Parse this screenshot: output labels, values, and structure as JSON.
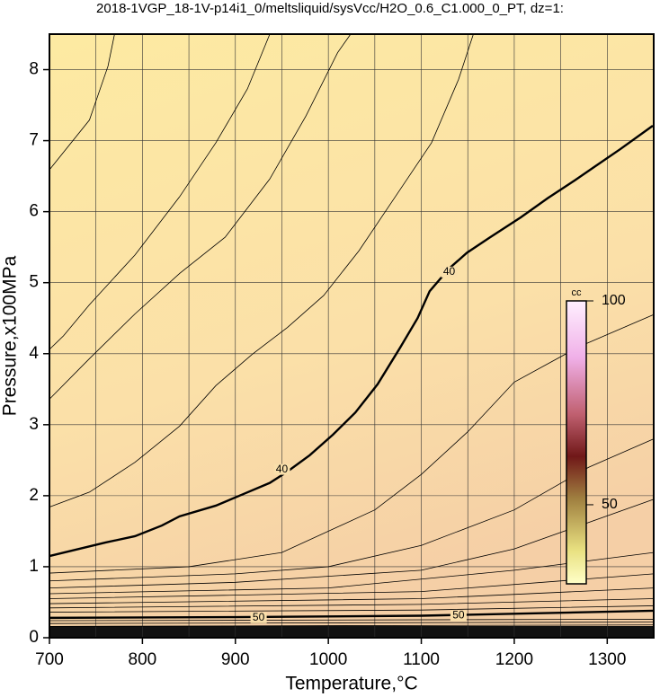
{
  "chart_data": {
    "type": "contour",
    "title": "2018-1VGP_18-1V-p14i1_0/meltsliquid/sysVcc/H2O_0.6_C1.000_0_PT, dz=1:",
    "x_label": "Temperature,°C",
    "y_label": "Pressure,x100MPa",
    "xlim": [
      700,
      1350
    ],
    "ylim": [
      0,
      8.5
    ],
    "xticks": [
      700,
      800,
      900,
      1000,
      1100,
      1200,
      1300
    ],
    "xminor_ticks": [
      750,
      850,
      950,
      1050,
      1150,
      1250,
      1350
    ],
    "yticks": [
      0,
      1,
      2,
      3,
      4,
      5,
      6,
      7,
      8
    ],
    "grid": true,
    "bold_contours": [
      {
        "x": [
          700,
          760,
          792,
          821,
          840,
          879,
          908,
          937,
          956,
          980,
          1005,
          1029,
          1053,
          1077,
          1096,
          1109,
          1130,
          1149,
          1173,
          1207,
          1236,
          1265,
          1285,
          1314,
          1349
        ],
        "y": [
          1.15,
          1.34,
          1.43,
          1.58,
          1.71,
          1.86,
          2.02,
          2.18,
          2.34,
          2.57,
          2.86,
          3.17,
          3.57,
          4.08,
          4.5,
          4.88,
          5.2,
          5.42,
          5.63,
          5.92,
          6.19,
          6.44,
          6.62,
          6.88,
          7.21
        ]
      },
      {
        "x": [
          700,
          900,
          1100,
          1350
        ],
        "y": [
          0.28,
          0.29,
          0.31,
          0.38
        ]
      }
    ],
    "contours": [
      {
        "x": [
          700,
          743,
          763,
          770
        ],
        "y": [
          6.59,
          7.29,
          8.05,
          8.5
        ]
      },
      {
        "x": [
          700,
          715,
          743,
          792,
          840,
          879,
          913,
          937
        ],
        "y": [
          4.06,
          4.25,
          4.69,
          5.39,
          6.21,
          6.97,
          7.73,
          8.5
        ]
      },
      {
        "x": [
          700,
          743,
          792,
          840,
          889,
          937,
          976,
          1010,
          1024
        ],
        "y": [
          3.36,
          3.93,
          4.56,
          5.13,
          5.64,
          6.46,
          7.35,
          8.24,
          8.5
        ]
      },
      {
        "x": [
          700,
          743,
          792,
          840,
          879,
          918,
          956,
          995,
          1033,
          1072,
          1111,
          1140,
          1156
        ],
        "y": [
          1.84,
          2.05,
          2.47,
          2.98,
          3.55,
          3.99,
          4.37,
          4.82,
          5.45,
          6.21,
          6.97,
          7.86,
          8.5
        ]
      },
      {
        "x": [
          700,
          850,
          950,
          1050,
          1100,
          1150,
          1200,
          1270,
          1350
        ],
        "y": [
          0.91,
          1.0,
          1.2,
          1.8,
          2.3,
          2.9,
          3.6,
          4.1,
          4.55
        ]
      },
      {
        "x": [
          700,
          900,
          1000,
          1100,
          1200,
          1280,
          1350
        ],
        "y": [
          0.8,
          0.9,
          1.0,
          1.3,
          1.8,
          2.4,
          2.8
        ]
      },
      {
        "x": [
          700,
          900,
          1100,
          1200,
          1350
        ],
        "y": [
          0.7,
          0.78,
          0.95,
          1.25,
          1.95
        ]
      },
      {
        "x": [
          700,
          1000,
          1200,
          1350
        ],
        "y": [
          0.62,
          0.7,
          0.95,
          1.2
        ]
      },
      {
        "x": [
          700,
          1100,
          1350
        ],
        "y": [
          0.55,
          0.65,
          0.9
        ]
      },
      {
        "x": [
          700,
          1100,
          1350
        ],
        "y": [
          0.48,
          0.55,
          0.7
        ]
      },
      {
        "x": [
          700,
          1100,
          1350
        ],
        "y": [
          0.42,
          0.47,
          0.55
        ]
      },
      {
        "x": [
          700,
          1100,
          1350
        ],
        "y": [
          0.36,
          0.39,
          0.45
        ]
      },
      {
        "x": [
          700,
          1350
        ],
        "y": [
          0.24,
          0.26
        ]
      },
      {
        "x": [
          700,
          1350
        ],
        "y": [
          0.2,
          0.22
        ]
      },
      {
        "x": [
          700,
          1350
        ],
        "y": [
          0.16,
          0.18
        ]
      }
    ],
    "labels": [
      {
        "value": 40,
        "x": 950,
        "y": 2.37
      },
      {
        "value": 40,
        "x": 1130,
        "y": 5.15
      },
      {
        "value": 50,
        "x": 925,
        "y": 0.28
      },
      {
        "value": 50,
        "x": 1140,
        "y": 0.31
      }
    ],
    "colorbar": {
      "label": "cc",
      "lim": [
        30.6,
        100
      ],
      "ticks": [
        50,
        100
      ]
    }
  }
}
